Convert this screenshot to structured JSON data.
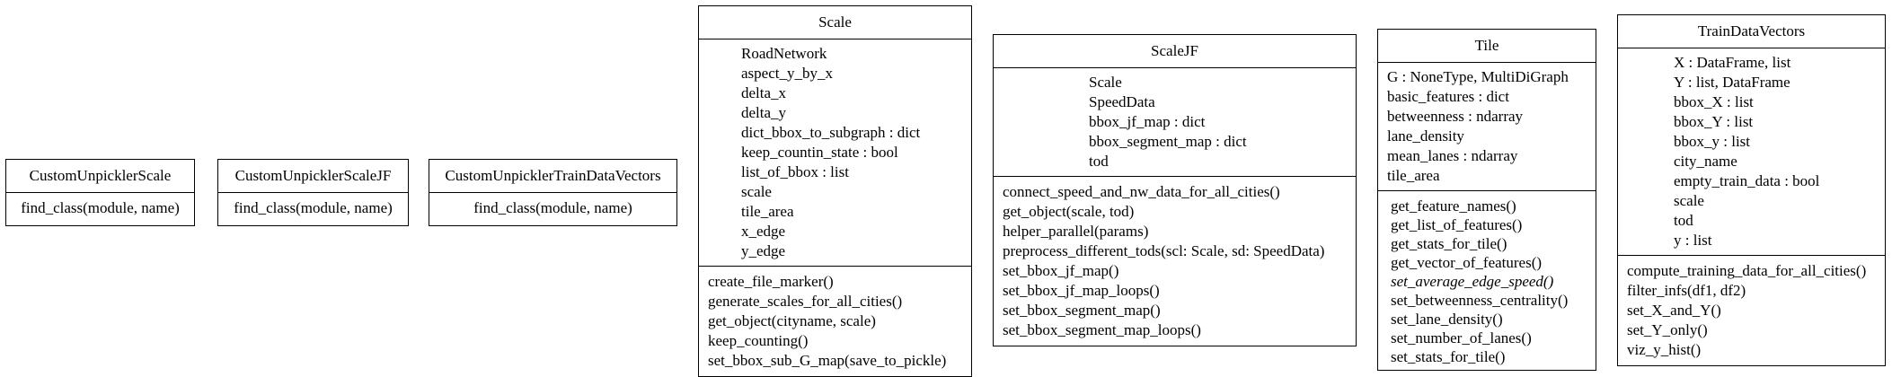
{
  "classes": {
    "custom_unpickler_scale": {
      "name": "CustomUnpicklerScale",
      "attributes": [],
      "methods": [
        "find_class(module, name)"
      ]
    },
    "custom_unpickler_scale_jf": {
      "name": "CustomUnpicklerScaleJF",
      "attributes": [],
      "methods": [
        "find_class(module, name)"
      ]
    },
    "custom_unpickler_train_data_vectors": {
      "name": "CustomUnpicklerTrainDataVectors",
      "attributes": [],
      "methods": [
        "find_class(module, name)"
      ]
    },
    "scale": {
      "name": "Scale",
      "attributes": [
        "RoadNetwork",
        "aspect_y_by_x",
        "delta_x",
        "delta_y",
        "dict_bbox_to_subgraph : dict",
        "keep_countin_state : bool",
        "list_of_bbox : list",
        "scale",
        "tile_area",
        "x_edge",
        "y_edge"
      ],
      "methods": [
        "create_file_marker()",
        "generate_scales_for_all_cities()",
        "get_object(cityname, scale)",
        "keep_counting()",
        "set_bbox_sub_G_map(save_to_pickle)"
      ]
    },
    "scale_jf": {
      "name": "ScaleJF",
      "attributes": [
        "Scale",
        "SpeedData",
        "bbox_jf_map : dict",
        "bbox_segment_map : dict",
        "tod"
      ],
      "methods": [
        "connect_speed_and_nw_data_for_all_cities()",
        "get_object(scale, tod)",
        "helper_parallel(params)",
        "preprocess_different_tods(scl: Scale, sd: SpeedData)",
        "set_bbox_jf_map()",
        "set_bbox_jf_map_loops()",
        "set_bbox_segment_map()",
        "set_bbox_segment_map_loops()"
      ]
    },
    "tile": {
      "name": "Tile",
      "attributes": [
        "G : NoneType, MultiDiGraph",
        "basic_features : dict",
        "betweenness : ndarray",
        "lane_density",
        "mean_lanes : ndarray",
        "tile_area"
      ],
      "methods": [
        "get_feature_names()",
        "get_list_of_features()",
        "get_stats_for_tile()",
        "get_vector_of_features()",
        "set_average_edge_speed()",
        "set_betweenness_centrality()",
        "set_lane_density()",
        "set_number_of_lanes()",
        "set_stats_for_tile()"
      ]
    },
    "train_data_vectors": {
      "name": "TrainDataVectors",
      "attributes": [
        "X : DataFrame, list",
        "Y : list, DataFrame",
        "bbox_X : list",
        "bbox_Y : list",
        "bbox_y : list",
        "city_name",
        "empty_train_data : bool",
        "scale",
        "tod",
        "y : list"
      ],
      "methods": [
        "compute_training_data_for_all_cities()",
        "filter_infs(df1, df2)",
        "set_X_and_Y()",
        "set_Y_only()",
        "viz_y_hist()"
      ]
    }
  }
}
